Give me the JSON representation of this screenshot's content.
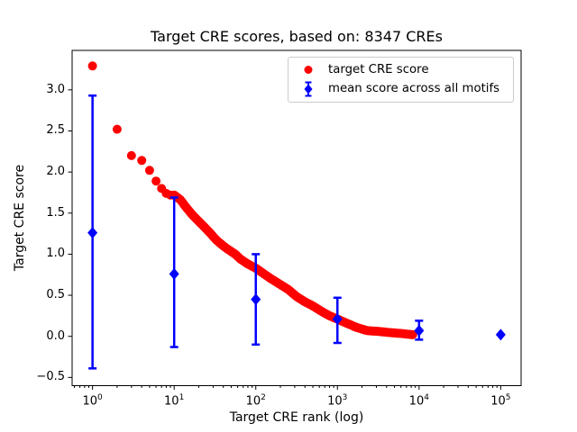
{
  "colors": {
    "red": "#ff0000",
    "blue": "#0000ff",
    "frame": "#000000",
    "text": "#000000",
    "legend_border": "#cccccc",
    "background": "#ffffff"
  },
  "chart_data": {
    "type": "scatter",
    "title": "Target CRE scores, based on: 8347 CREs",
    "xlabel": "Target CRE rank (log)",
    "ylabel": "Target CRE score",
    "x_scale": "log",
    "grid": "off",
    "x_axis": {
      "tick_exponents": [
        0,
        1,
        2,
        3,
        4,
        5
      ],
      "lim_log10": [
        -0.25,
        5.25
      ],
      "minor_ticks": true
    },
    "y_axis": {
      "ticks": [
        3.0,
        2.5,
        2.0,
        1.5,
        1.0,
        0.5,
        0.0,
        -0.5
      ],
      "tick_labels": [
        "3.0",
        "2.5",
        "2.0",
        "1.5",
        "1.0",
        "0.5",
        "0.0",
        "−0.5"
      ],
      "lim": [
        -0.6,
        3.48
      ]
    },
    "legend": {
      "position": "upper right"
    },
    "series": [
      {
        "name": "target CRE score",
        "marker": "circle",
        "color": "#ff0000",
        "n_points": 8347,
        "anchors": [
          [
            1,
            3.29
          ],
          [
            2,
            2.52
          ],
          [
            3,
            2.2
          ],
          [
            4,
            2.14
          ],
          [
            5,
            2.02
          ],
          [
            6,
            1.89
          ],
          [
            7,
            1.8
          ],
          [
            8,
            1.74
          ],
          [
            9,
            1.72
          ],
          [
            10,
            1.72
          ],
          [
            12,
            1.66
          ],
          [
            14,
            1.57
          ],
          [
            17,
            1.47
          ],
          [
            20,
            1.4
          ],
          [
            24,
            1.32
          ],
          [
            28,
            1.25
          ],
          [
            33,
            1.17
          ],
          [
            40,
            1.1
          ],
          [
            47,
            1.05
          ],
          [
            56,
            1.0
          ],
          [
            65,
            0.94
          ],
          [
            80,
            0.88
          ],
          [
            100,
            0.83
          ],
          [
            130,
            0.75
          ],
          [
            160,
            0.69
          ],
          [
            200,
            0.63
          ],
          [
            250,
            0.57
          ],
          [
            320,
            0.48
          ],
          [
            400,
            0.42
          ],
          [
            500,
            0.37
          ],
          [
            650,
            0.3
          ],
          [
            800,
            0.25
          ],
          [
            1000,
            0.21
          ],
          [
            1300,
            0.16
          ],
          [
            1700,
            0.11
          ],
          [
            2300,
            0.07
          ],
          [
            3200,
            0.06
          ],
          [
            4500,
            0.045
          ],
          [
            6000,
            0.035
          ],
          [
            8347,
            0.02
          ]
        ]
      },
      {
        "name": "mean score across all motifs",
        "marker": "diamond",
        "color": "#0000ff",
        "points": [
          {
            "rank": 1,
            "mean": 1.26,
            "err_lo": -0.39,
            "err_hi": 2.93
          },
          {
            "rank": 10,
            "mean": 0.76,
            "err_lo": -0.13,
            "err_hi": 1.69
          },
          {
            "rank": 100,
            "mean": 0.45,
            "err_lo": -0.1,
            "err_hi": 1.0
          },
          {
            "rank": 1000,
            "mean": 0.21,
            "err_lo": -0.08,
            "err_hi": 0.47
          },
          {
            "rank": 10000,
            "mean": 0.07,
            "err_lo": -0.04,
            "err_hi": 0.19
          },
          {
            "rank": 100000,
            "mean": 0.02,
            "err_lo": 0.02,
            "err_hi": 0.02
          }
        ]
      }
    ]
  }
}
